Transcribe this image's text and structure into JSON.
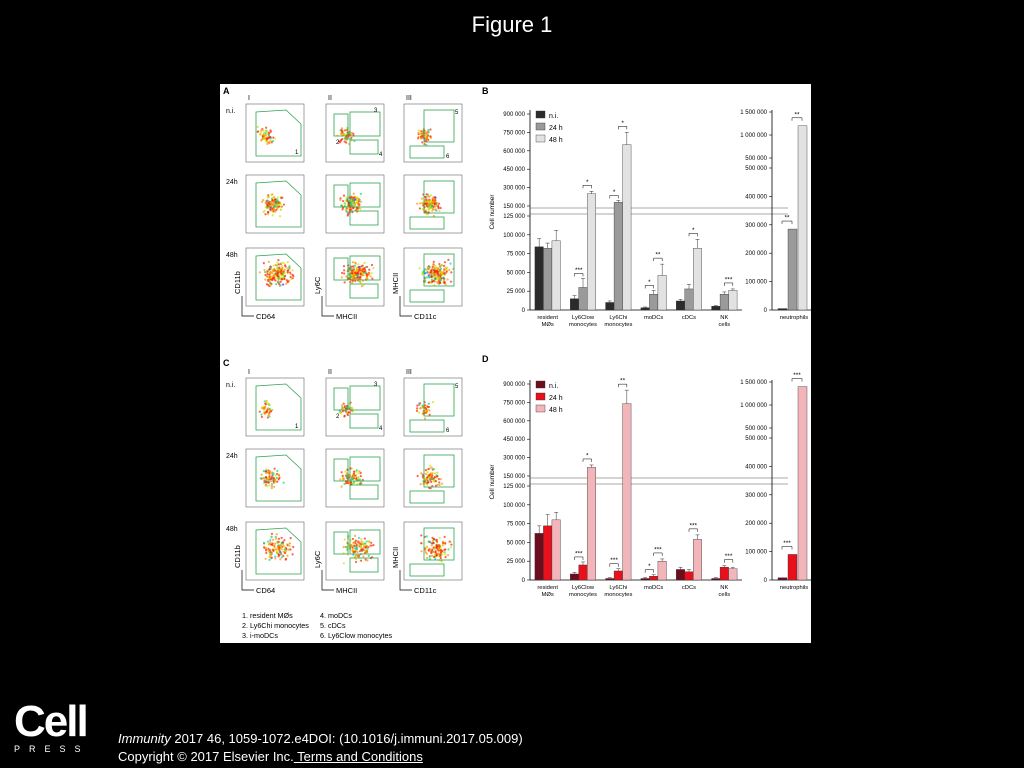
{
  "slide": {
    "title": "Figure 1",
    "journal": "Immunity",
    "citation_rest": " 2017 46, 1059-1072.e4DOI: (10.1016/j.immuni.2017.05.009)",
    "copyright": "Copyright © 2017 Elsevier Inc.",
    "terms_link": " Terms and Conditions",
    "logo_word": "Cell",
    "logo_sub": "PRESS"
  },
  "panels": {
    "A": "A",
    "B": "B",
    "C": "C",
    "D": "D",
    "cols": [
      "I",
      "II",
      "III"
    ],
    "rows": [
      "n.i.",
      "24h",
      "48h"
    ],
    "flow_axes": {
      "x": [
        "CD64",
        "MHCII",
        "CD11c"
      ],
      "y": [
        "CD11b",
        "Ly6C",
        "MHCII"
      ]
    },
    "gates_col1": [
      "1"
    ],
    "gates_col2": [
      "2",
      "3",
      "4"
    ],
    "gates_col3": [
      "5",
      "6"
    ],
    "legend_list": [
      "1. resident MØs",
      "2. Ly6Chi monocytes",
      "3. i-moDCs",
      "4. moDCs",
      "5. cDCs",
      "6. Ly6Clow monocytes"
    ]
  },
  "chart_data": [
    {
      "id": "B",
      "type": "bar",
      "ylabel": "Cell number",
      "legend": [
        "n.i.",
        "24 h",
        "48 h"
      ],
      "colors": [
        "#2b2b2b",
        "#9a9a9a",
        "#e2e2e2"
      ],
      "categories": [
        "resident MØs",
        "Ly6Clow monocytes",
        "Ly6Chi monocytes",
        "moDCs",
        "cDCs",
        "NK cells"
      ],
      "series": [
        {
          "name": "n.i.",
          "values": [
            84000,
            15000,
            10000,
            3000,
            12000,
            5000
          ]
        },
        {
          "name": "24 h",
          "values": [
            82000,
            30000,
            180000,
            21000,
            28000,
            21000
          ]
        },
        {
          "name": "48 h",
          "values": [
            92000,
            250000,
            650000,
            46000,
            82000,
            26000
          ]
        }
      ],
      "errors": [
        [
          11000,
          4000,
          2000,
          1000,
          2000,
          1000
        ],
        [
          7000,
          12000,
          15000,
          5000,
          6000,
          3000
        ],
        [
          14000,
          20000,
          100000,
          15000,
          12000,
          2000
        ]
      ],
      "ylim_lower": [
        0,
        125000
      ],
      "ylim_upper": [
        150000,
        900000
      ],
      "yticks": [
        "900 000",
        "750 000",
        "600 000",
        "450 000",
        "300 000",
        "150 000",
        "125 000",
        "100 000",
        "75 000",
        "50 000",
        "25 000",
        "0"
      ],
      "significance": [
        "*",
        "***",
        "*",
        "*",
        "**",
        "*",
        "*",
        "***",
        "**"
      ],
      "sub": {
        "categories": [
          "neutrophils"
        ],
        "series": [
          {
            "name": "n.i.",
            "values": [
              5000
            ]
          },
          {
            "name": "24 h",
            "values": [
              285000
            ]
          },
          {
            "name": "48 h",
            "values": [
              1200000
            ]
          }
        ],
        "yticks": [
          "1 500 000",
          "1 000 000",
          "500 000",
          "500 000",
          "400 000",
          "300 000",
          "200 000",
          "100 000",
          "0"
        ],
        "significance": [
          "**",
          "**"
        ]
      }
    },
    {
      "id": "D",
      "type": "bar",
      "ylabel": "Cell number",
      "legend": [
        "n.i.",
        "24 h",
        "48 h"
      ],
      "colors": [
        "#6e0d1e",
        "#e8101b",
        "#f2b6ba"
      ],
      "categories": [
        "resident MØs",
        "Ly6Clow monocytes",
        "Ly6Chi monocytes",
        "moDCs",
        "cDCs",
        "NK cells"
      ],
      "series": [
        {
          "name": "n.i.",
          "values": [
            62000,
            8000,
            2000,
            2000,
            14000,
            2000
          ]
        },
        {
          "name": "24 h",
          "values": [
            72000,
            20000,
            12000,
            5000,
            11000,
            17000
          ]
        },
        {
          "name": "48 h",
          "values": [
            80000,
            220000,
            740000,
            25000,
            54000,
            15000
          ]
        }
      ],
      "errors": [
        [
          10000,
          2000,
          1000,
          1000,
          3000,
          1000
        ],
        [
          15000,
          4000,
          3000,
          2000,
          3000,
          2000
        ],
        [
          10000,
          20000,
          110000,
          3000,
          6000,
          2000
        ]
      ],
      "ylim_lower": [
        0,
        125000
      ],
      "ylim_upper": [
        150000,
        900000
      ],
      "yticks": [
        "900 000",
        "750 000",
        "600 000",
        "450 000",
        "300 000",
        "150 000",
        "125 000",
        "100 000",
        "75 000",
        "50 000",
        "25 000",
        "0"
      ],
      "significance": [
        "*",
        "***",
        "**",
        "***",
        "***",
        "*",
        "***",
        "***"
      ],
      "sub": {
        "categories": [
          "neutrophils"
        ],
        "series": [
          {
            "name": "n.i.",
            "values": [
              8000
            ]
          },
          {
            "name": "24 h",
            "values": [
              90000
            ]
          },
          {
            "name": "48 h",
            "values": [
              1400000
            ]
          }
        ],
        "yticks": [
          "1 500 000",
          "1 000 000",
          "500 000",
          "500 000",
          "400 000",
          "300 000",
          "200 000",
          "100 000",
          "0"
        ],
        "significance": [
          "***",
          "***"
        ]
      }
    }
  ]
}
